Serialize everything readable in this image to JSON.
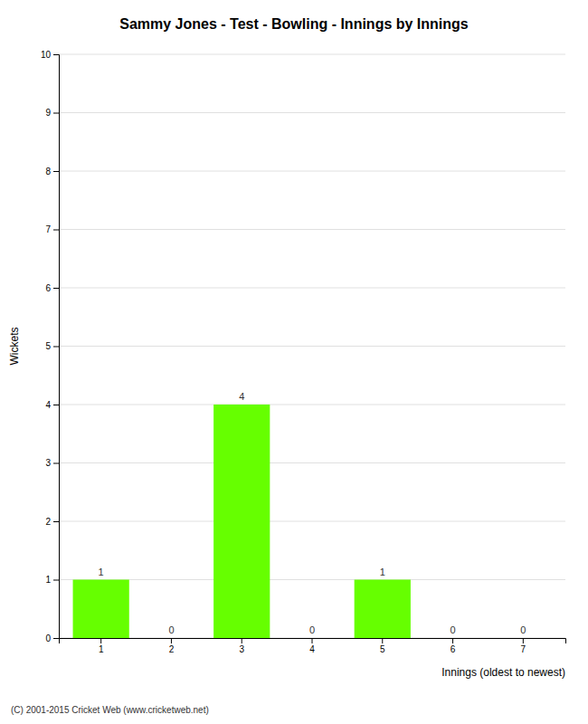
{
  "chart_data": {
    "type": "bar",
    "title": "Sammy Jones - Test - Bowling - Innings by Innings",
    "xlabel": "Innings (oldest to newest)",
    "ylabel": "Wickets",
    "categories": [
      "1",
      "2",
      "3",
      "4",
      "5",
      "6",
      "7"
    ],
    "values": [
      1,
      0,
      4,
      0,
      1,
      0,
      0
    ],
    "color": "#66ff00",
    "ylim": [
      0,
      10
    ],
    "yticks": [
      0,
      1,
      2,
      3,
      4,
      5,
      6,
      7,
      8,
      9,
      10
    ],
    "grid": true,
    "data_labels": true,
    "annotations": [
      "(C) 2001-2015 Cricket Web (www.cricketweb.net)"
    ]
  }
}
